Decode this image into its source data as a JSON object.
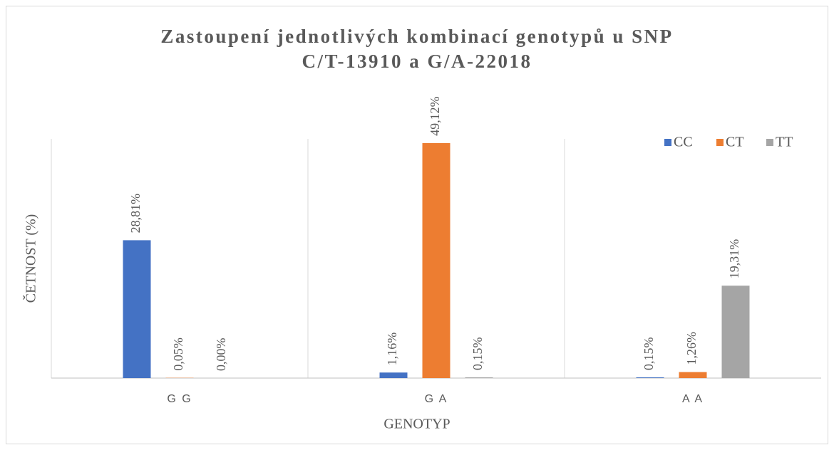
{
  "chart_data": {
    "type": "bar",
    "title": [
      "Zastoupení jednotlivých kombinací genotypů u SNP",
      "C/T-13910 a G/A-22018"
    ],
    "x_label": "GENOTYP",
    "y_label": "ČETNOST (%)",
    "categories": [
      "G G",
      "G A",
      "A A"
    ],
    "series": [
      {
        "name": "CC",
        "color": "#4472c4",
        "values": [
          28.81,
          1.16,
          0.15
        ],
        "value_labels": [
          "28,81%",
          "1,16%",
          "0,15%"
        ]
      },
      {
        "name": "CT",
        "color": "#ed7d31",
        "values": [
          0.05,
          49.12,
          1.26
        ],
        "value_labels": [
          "0,05%",
          "49,12%",
          "1,26%"
        ]
      },
      {
        "name": "TT",
        "color": "#a5a5a5",
        "values": [
          0.0,
          0.15,
          19.31
        ],
        "value_labels": [
          "0,00%",
          "0,15%",
          "19,31%"
        ]
      }
    ],
    "ylim": [
      0,
      50
    ],
    "legend": "top-right"
  }
}
